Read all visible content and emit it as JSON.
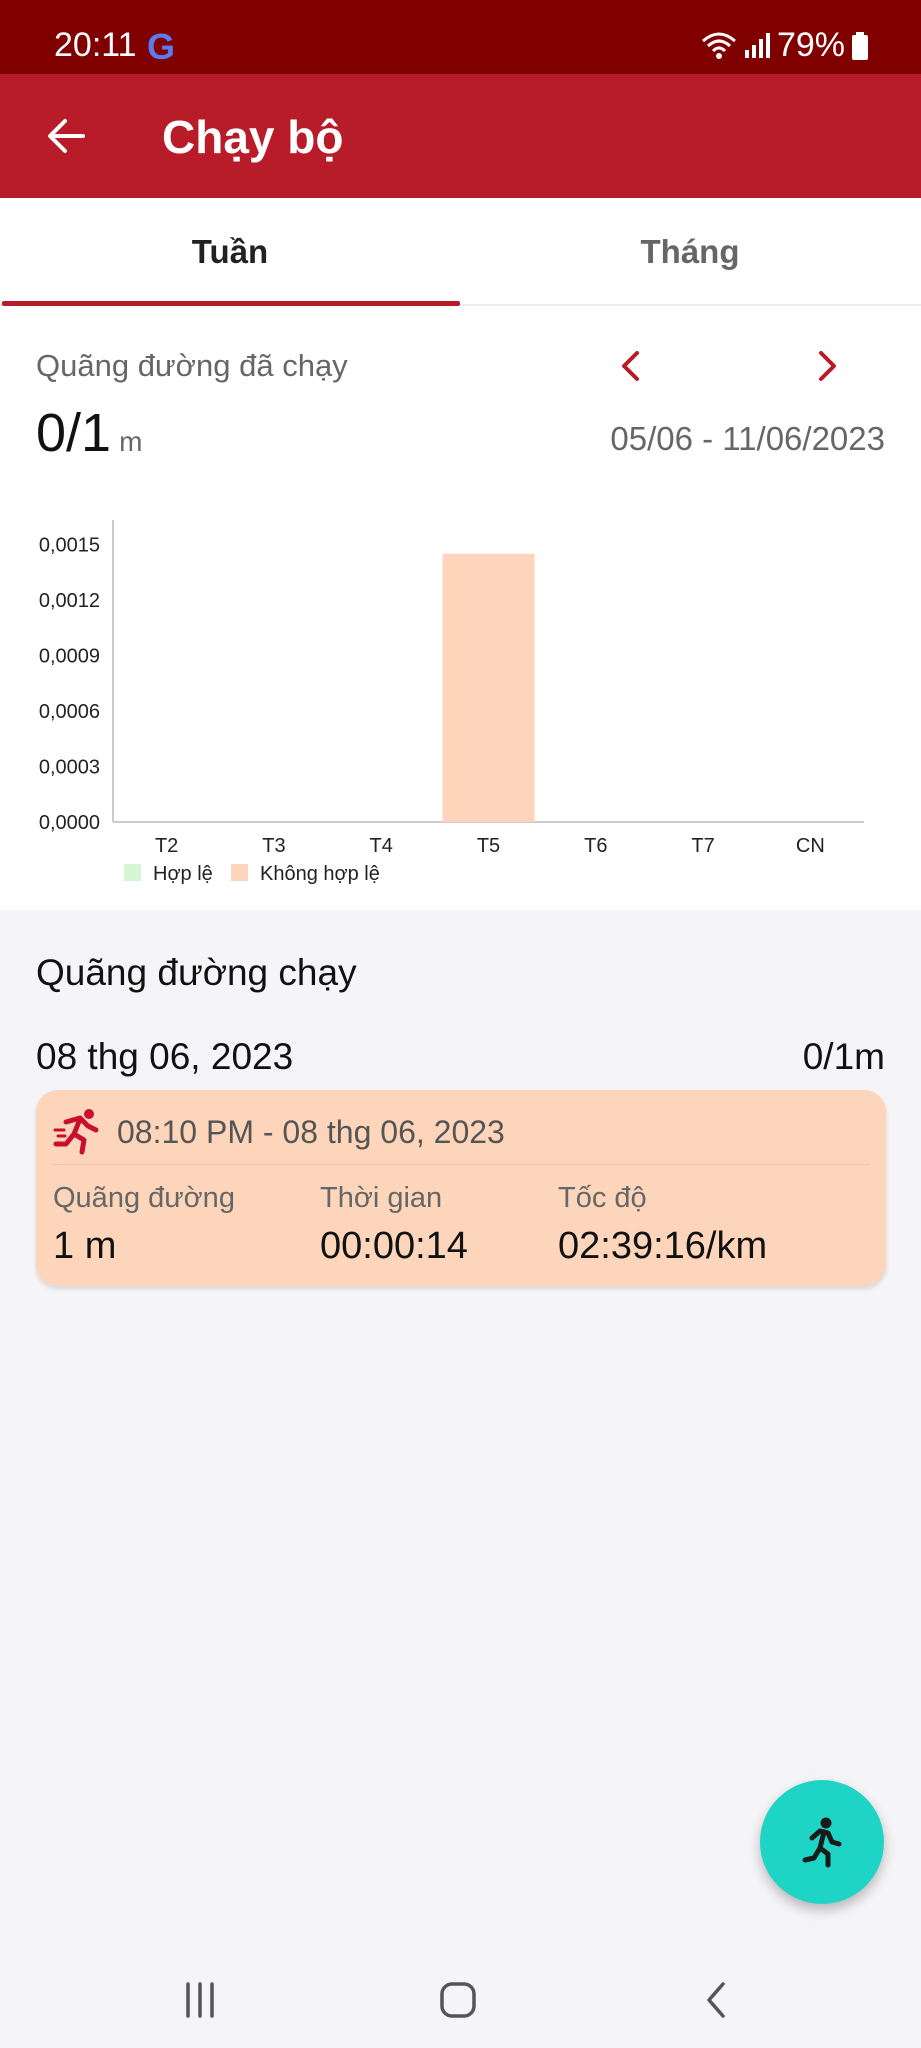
{
  "status_bar": {
    "time": "20:11",
    "google_glyph": "G",
    "battery": "79%"
  },
  "app_bar": {
    "title": "Chạy bộ"
  },
  "tabs": [
    {
      "label": "Tuần",
      "active": true
    },
    {
      "label": "Tháng",
      "active": false
    }
  ],
  "summary": {
    "label": "Quãng đường đã chạy",
    "value": "0/1",
    "unit": "m",
    "date_range": "05/06 - 11/06/2023"
  },
  "chart_data": {
    "type": "bar",
    "categories": [
      "T2",
      "T3",
      "T4",
      "T5",
      "T6",
      "T7",
      "CN"
    ],
    "series": [
      {
        "name": "Hợp lệ",
        "color": "#d5f5d5",
        "values": [
          0,
          0,
          0,
          0,
          0,
          0,
          0
        ]
      },
      {
        "name": "Không hợp lệ",
        "color": "#fdd5bb",
        "values": [
          0,
          0,
          0,
          0.00145,
          0,
          0,
          0
        ]
      }
    ],
    "yticks": [
      "0,0000",
      "0,0003",
      "0,0006",
      "0,0009",
      "0,0012",
      "0,0015"
    ],
    "ytick_values": [
      0,
      0.0003,
      0.0006,
      0.0009,
      0.0012,
      0.0015
    ],
    "ylim": [
      0,
      0.0016
    ],
    "legend": "bottom-left",
    "grid": false
  },
  "list": {
    "title": "Quãng đường chạy",
    "day_label": "08 thg 06, 2023",
    "day_total": "0/1m",
    "runs": [
      {
        "time": "08:10 PM - 08 thg 06, 2023",
        "distance_label": "Quãng đường",
        "distance_value": "1 m",
        "duration_label": "Thời gian",
        "duration_value": "00:00:14",
        "pace_label": "Tốc độ",
        "pace_value": "02:39:16/km"
      }
    ]
  },
  "colors": {
    "primary": "#b71c28",
    "status_bar": "#800000",
    "fab": "#1ed4c5",
    "invalid": "#fdd5bb",
    "valid": "#d5f5d5"
  },
  "icons": {
    "back": "arrow-left-icon",
    "prev": "chevron-left-icon",
    "next": "chevron-right-icon",
    "run": "runner-icon"
  }
}
